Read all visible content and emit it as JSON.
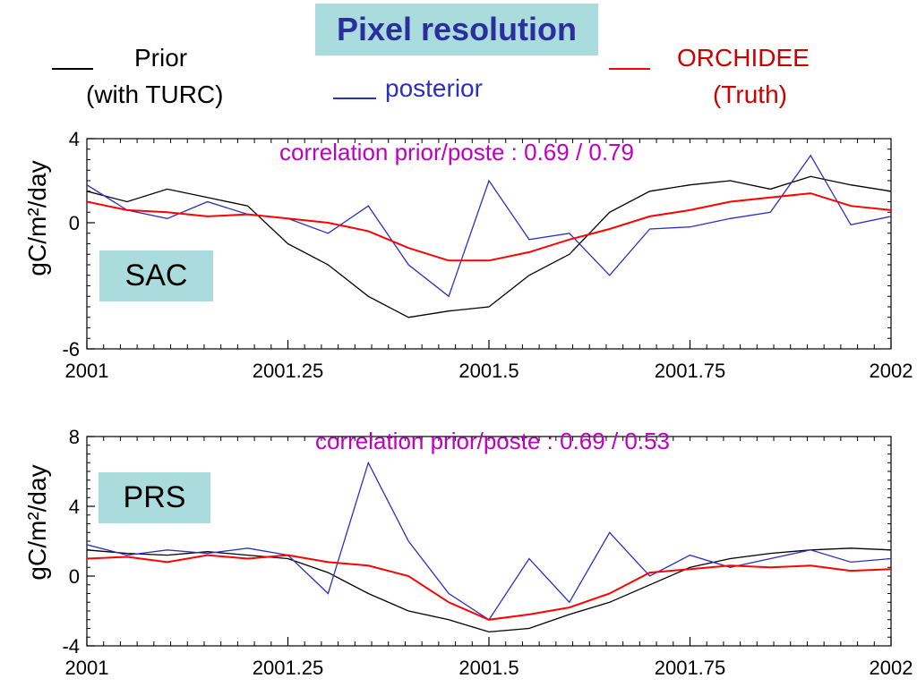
{
  "title": "Pixel resolution",
  "legend": {
    "prior_line1": "Prior",
    "prior_line2": "(with TURC)",
    "posterior": "posterior",
    "orchidee_line1": "ORCHIDEE",
    "orchidee_line2": "(Truth)"
  },
  "colors": {
    "prior": "#000000",
    "posterior": "#2b2fc0",
    "orchidee": "#ff0000",
    "annotation": "#c000c0",
    "title_bg": "#aadcdd",
    "title_text": "#2b2f9e",
    "orchidee_label": "#cc0000"
  },
  "chart_data": [
    {
      "type": "line",
      "site": "SAC",
      "annotation": "correlation prior/poste : 0.69 / 0.79",
      "ylabel": "gC/m²/day",
      "xlim": [
        2001,
        2002
      ],
      "ylim": [
        -6,
        4
      ],
      "yticks": [
        4,
        0,
        -6
      ],
      "xticks": [
        "2001",
        "2001.25",
        "2001.5",
        "2001.75",
        "2002"
      ],
      "series": [
        {
          "key": "prior",
          "x": [
            2001.0,
            2001.05,
            2001.1,
            2001.15,
            2001.2,
            2001.25,
            2001.3,
            2001.35,
            2001.4,
            2001.45,
            2001.5,
            2001.55,
            2001.6,
            2001.65,
            2001.7,
            2001.75,
            2001.8,
            2001.85,
            2001.9,
            2001.95,
            2002.0
          ],
          "values": [
            1.5,
            1.0,
            1.6,
            1.2,
            0.8,
            -1.0,
            -2.0,
            -3.5,
            -4.5,
            -4.2,
            -4.0,
            -2.5,
            -1.5,
            0.5,
            1.5,
            1.8,
            2.0,
            1.6,
            2.2,
            1.8,
            1.5
          ]
        },
        {
          "key": "posterior",
          "x": [
            2001.0,
            2001.05,
            2001.1,
            2001.15,
            2001.2,
            2001.25,
            2001.3,
            2001.35,
            2001.4,
            2001.45,
            2001.5,
            2001.55,
            2001.6,
            2001.65,
            2001.7,
            2001.75,
            2001.8,
            2001.85,
            2001.9,
            2001.95,
            2002.0
          ],
          "values": [
            1.8,
            0.6,
            0.2,
            1.0,
            0.4,
            0.2,
            -0.5,
            0.8,
            -2.0,
            -3.5,
            2.0,
            -0.8,
            -0.5,
            -2.5,
            -0.3,
            -0.2,
            0.2,
            0.5,
            3.2,
            -0.1,
            0.3
          ]
        },
        {
          "key": "orchidee",
          "x": [
            2001.0,
            2001.05,
            2001.1,
            2001.15,
            2001.2,
            2001.25,
            2001.3,
            2001.35,
            2001.4,
            2001.45,
            2001.5,
            2001.55,
            2001.6,
            2001.65,
            2001.7,
            2001.75,
            2001.8,
            2001.85,
            2001.9,
            2001.95,
            2002.0
          ],
          "values": [
            1.0,
            0.6,
            0.5,
            0.3,
            0.4,
            0.2,
            0.0,
            -0.4,
            -1.2,
            -1.8,
            -1.8,
            -1.4,
            -0.8,
            -0.3,
            0.3,
            0.6,
            1.0,
            1.2,
            1.4,
            0.8,
            0.6
          ]
        }
      ]
    },
    {
      "type": "line",
      "site": "PRS",
      "annotation": "correlation prior/poste : 0.69 / 0.53",
      "ylabel": "gC/m²/day",
      "xlim": [
        2001,
        2002
      ],
      "ylim": [
        -4,
        8
      ],
      "yticks": [
        8,
        4,
        0,
        -4
      ],
      "xticks": [
        "2001",
        "2001.25",
        "2001.5",
        "2001.75",
        "2002"
      ],
      "series": [
        {
          "key": "prior",
          "x": [
            2001.0,
            2001.05,
            2001.1,
            2001.15,
            2001.2,
            2001.25,
            2001.3,
            2001.35,
            2001.4,
            2001.45,
            2001.5,
            2001.55,
            2001.6,
            2001.65,
            2001.7,
            2001.75,
            2001.8,
            2001.85,
            2001.9,
            2001.95,
            2002.0
          ],
          "values": [
            1.5,
            1.3,
            1.2,
            1.4,
            1.2,
            1.0,
            0.2,
            -1.0,
            -2.0,
            -2.5,
            -3.2,
            -3.0,
            -2.2,
            -1.5,
            -0.5,
            0.5,
            1.0,
            1.3,
            1.5,
            1.6,
            1.5
          ]
        },
        {
          "key": "posterior",
          "x": [
            2001.0,
            2001.05,
            2001.1,
            2001.15,
            2001.2,
            2001.25,
            2001.3,
            2001.35,
            2001.4,
            2001.45,
            2001.5,
            2001.55,
            2001.6,
            2001.65,
            2001.7,
            2001.75,
            2001.8,
            2001.85,
            2001.9,
            2001.95,
            2002.0
          ],
          "values": [
            1.8,
            1.2,
            1.5,
            1.3,
            1.6,
            1.2,
            -1.0,
            6.5,
            2.0,
            -1.0,
            -2.5,
            1.0,
            -1.5,
            2.5,
            0.0,
            1.2,
            0.5,
            1.0,
            1.5,
            0.8,
            1.0
          ]
        },
        {
          "key": "orchidee",
          "x": [
            2001.0,
            2001.05,
            2001.1,
            2001.15,
            2001.2,
            2001.25,
            2001.3,
            2001.35,
            2001.4,
            2001.45,
            2001.5,
            2001.55,
            2001.6,
            2001.65,
            2001.7,
            2001.75,
            2001.8,
            2001.85,
            2001.9,
            2001.95,
            2002.0
          ],
          "values": [
            1.0,
            1.1,
            0.8,
            1.2,
            1.0,
            1.2,
            0.8,
            0.6,
            0.0,
            -1.5,
            -2.5,
            -2.2,
            -1.8,
            -1.0,
            0.2,
            0.4,
            0.6,
            0.5,
            0.6,
            0.3,
            0.4
          ]
        }
      ]
    }
  ]
}
